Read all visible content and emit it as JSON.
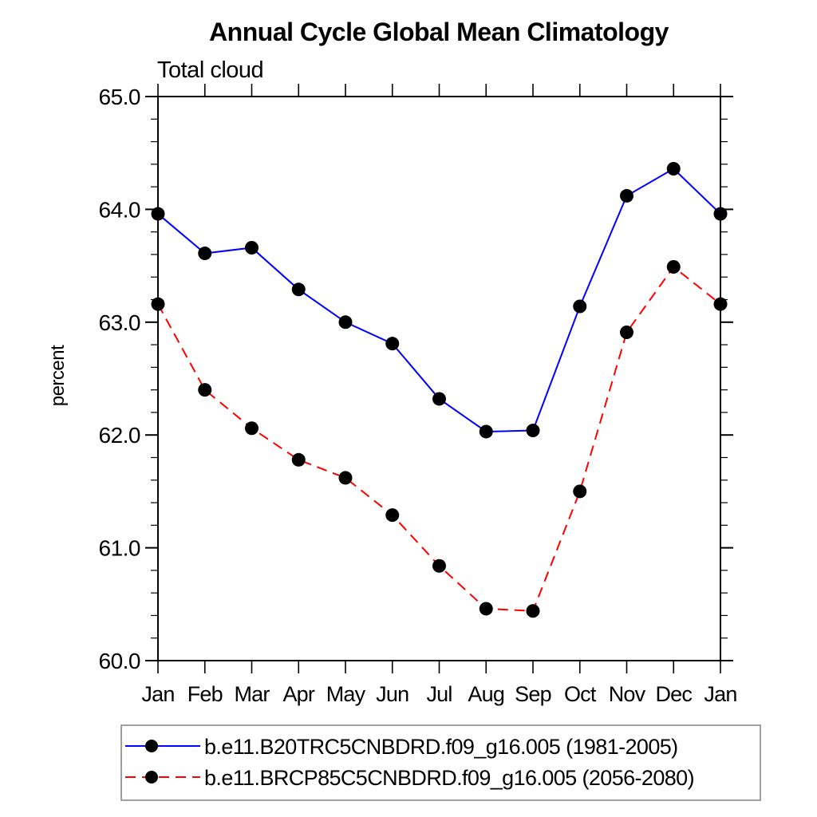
{
  "title": "Annual Cycle Global Mean Climatology",
  "subtitle": "Total cloud",
  "ylabel": "percent",
  "chart_data": {
    "type": "line",
    "categories": [
      "Jan",
      "Feb",
      "Mar",
      "Apr",
      "May",
      "Jun",
      "Jul",
      "Aug",
      "Sep",
      "Oct",
      "Nov",
      "Dec",
      "Jan"
    ],
    "xlabel": "",
    "ylabel": "percent",
    "title": "Annual Cycle Global Mean Climatology",
    "subtitle": "Total cloud",
    "ylim": [
      60.0,
      65.0
    ],
    "y_major_ticks": [
      60.0,
      61.0,
      62.0,
      63.0,
      64.0,
      65.0
    ],
    "y_tick_labels": [
      "60.0",
      "61.0",
      "62.0",
      "63.0",
      "64.0",
      "65.0"
    ],
    "y_minor_step": 0.2,
    "grid": false,
    "legend_position": "bottom",
    "marker": "filled-circle",
    "marker_color": "#000000",
    "series": [
      {
        "name": "b.e11.B20TRC5CNBDRD.f09_g16.005 (1981-2005)",
        "color": "#0000ff",
        "line_style": "solid",
        "values": [
          63.96,
          63.61,
          63.66,
          63.29,
          63.0,
          62.81,
          62.32,
          62.03,
          62.04,
          63.14,
          64.12,
          64.36,
          63.96
        ]
      },
      {
        "name": "b.e11.BRCP85C5CNBDRD.f09_g16.005 (2056-2080)",
        "color": "#ff0000",
        "line_style": "dashed",
        "values": [
          63.16,
          62.4,
          62.06,
          61.78,
          61.62,
          61.29,
          60.84,
          60.46,
          60.44,
          61.5,
          62.91,
          63.49,
          63.16
        ]
      }
    ]
  }
}
